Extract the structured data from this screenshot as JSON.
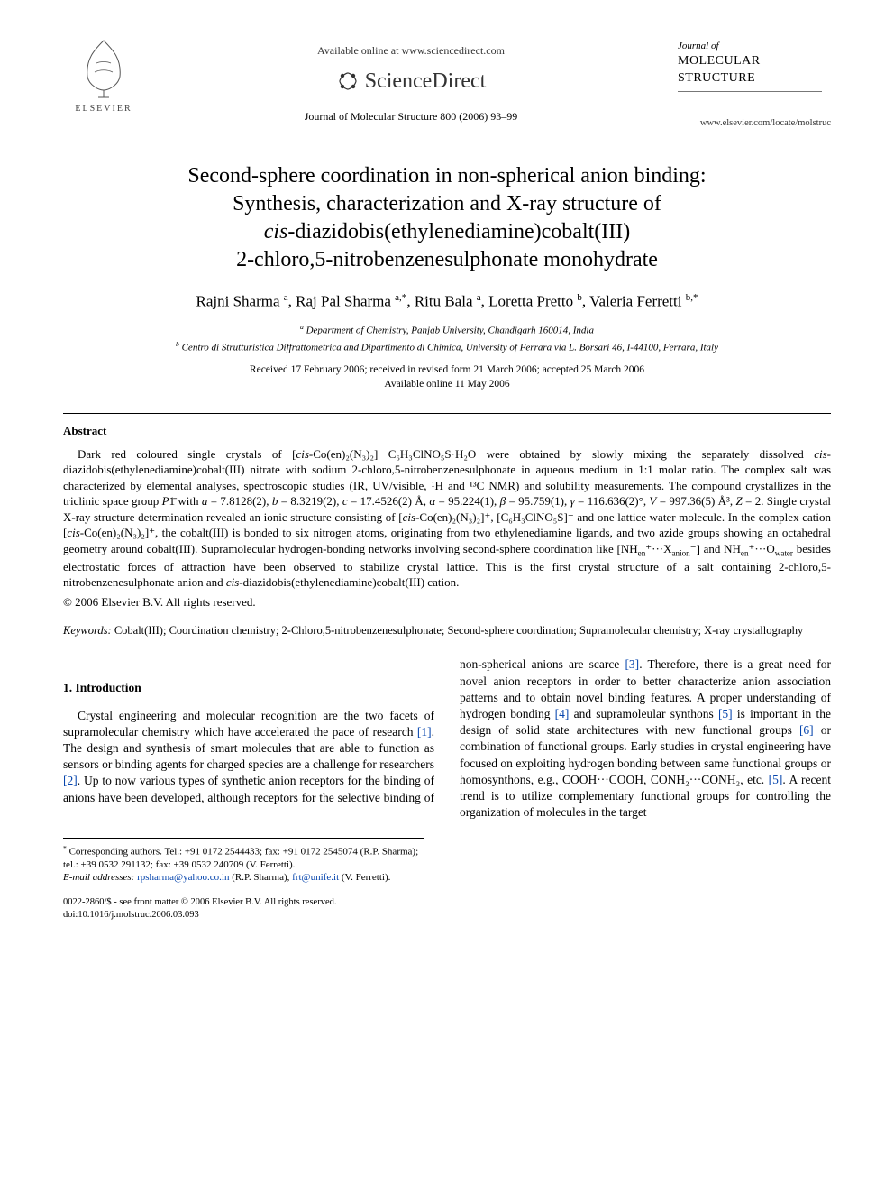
{
  "header": {
    "publisher_label": "ELSEVIER",
    "avail_text": "Available online at www.sciencedirect.com",
    "sd_brand": "ScienceDirect",
    "journal_ref": "Journal of Molecular Structure 800 (2006) 93–99",
    "right_journal_prefix": "Journal of",
    "right_journal_name1": "MOLECULAR",
    "right_journal_name2": "STRUCTURE",
    "locate_url": "www.elsevier.com/locate/molstruc"
  },
  "title": {
    "line1": "Second-sphere coordination in non-spherical anion binding:",
    "line2": "Synthesis, characterization and X-ray structure of",
    "line3_italic": "cis",
    "line3_rest": "-diazidobis(ethylenediamine)cobalt(III)",
    "line4": "2-chloro,5-nitrobenzenesulphonate monohydrate"
  },
  "authors_html": "Rajni Sharma <sup>a</sup>, Raj Pal Sharma <sup>a,*</sup>, Ritu Bala <sup>a</sup>, Loretta Pretto <sup>b</sup>, Valeria Ferretti <sup>b,*</sup>",
  "affiliations": {
    "a": "Department of Chemistry, Panjab University, Chandigarh 160014, India",
    "b": "Centro di Strutturistica Diffrattometrica and Dipartimento di Chimica, University of Ferrara via L. Borsari 46, I-44100, Ferrara, Italy"
  },
  "dates": {
    "received": "Received 17 February 2006; received in revised form 21 March 2006; accepted 25 March 2006",
    "online": "Available online 11 May 2006"
  },
  "abstract": {
    "heading": "Abstract",
    "body": "Dark red coloured single crystals of [cis-Co(en)₂(N₃)₂] C₆H₃ClNO₅S·H₂O were obtained by slowly mixing the separately dissolved cis-diazidobis(ethylenediamine)cobalt(III) nitrate with sodium 2-chloro,5-nitrobenzenesulphonate in aqueous medium in 1:1 molar ratio. The complex salt was characterized by elemental analyses, spectroscopic studies (IR, UV/visible, ¹H and ¹³C NMR) and solubility measurements. The compound crystallizes in the triclinic space group P1̄ with a = 7.8128(2), b = 8.3219(2), c = 17.4526(2) Å, α = 95.224(1), β = 95.759(1), γ = 116.636(2)°, V = 997.36(5) Å³, Z = 2. Single crystal X-ray structure determination revealed an ionic structure consisting of [cis-Co(en)₂(N₃)₂]⁺, [C₆H₃ClNO₅S]⁻ and one lattice water molecule. In the complex cation [cis-Co(en)₂(N₃)₂]⁺, the cobalt(III) is bonded to six nitrogen atoms, originating from two ethylenediamine ligands, and two azide groups showing an octahedral geometry around cobalt(III). Supramolecular hydrogen-bonding networks involving second-sphere coordination like [NHen⁺···Xanion⁻] and NHen⁺···Owater besides electrostatic forces of attraction have been observed to stabilize crystal lattice. This is the first crystal structure of a salt containing 2-chloro,5-nitrobenzenesulphonate anion and cis-diazidobis(ethylenediamine)cobalt(III) cation.",
    "copyright": "© 2006 Elsevier B.V. All rights reserved."
  },
  "keywords": {
    "label": "Keywords:",
    "text": "Cobalt(III); Coordination chemistry; 2-Chloro,5-nitrobenzenesulphonate; Second-sphere coordination; Supramolecular chemistry; X-ray crystallography"
  },
  "section1": {
    "heading": "1. Introduction",
    "para": "Crystal engineering and molecular recognition are the two facets of supramolecular chemistry which have accelerated the pace of research [1]. The design and synthesis of smart molecules that are able to function as sensors or binding agents for charged species are a challenge for researchers [2]. Up to now various types of synthetic anion receptors for the binding of anions have been developed, although receptors for the selective binding of non-spherical anions are scarce [3]. Therefore, there is a great need for novel anion receptors in order to better characterize anion association patterns and to obtain novel binding features. A proper understanding of hydrogen bonding [4] and supramoleular synthons [5] is important in the design of solid state architectures with new functional groups [6] or combination of functional groups. Early studies in crystal engineering have focused on exploiting hydrogen bonding between same functional groups or homosynthons, e.g., COOH···COOH, CONH₂···CONH₂, etc. [5]. A recent trend is to utilize complementary functional groups for controlling the organization of molecules in the target"
  },
  "footnotes": {
    "corr": "Corresponding authors. Tel.: +91 0172 2544433; fax: +91 0172 2545074 (R.P. Sharma); tel.: +39 0532 291132; fax: +39 0532 240709 (V. Ferretti).",
    "email_label": "E-mail addresses:",
    "email1": "rpsharma@yahoo.co.in",
    "email1_who": "(R.P. Sharma),",
    "email2": "frt@unife.it",
    "email2_who": "(V. Ferretti)."
  },
  "footer": {
    "issn": "0022-2860/$ - see front matter © 2006 Elsevier B.V. All rights reserved.",
    "doi": "doi:10.1016/j.molstruc.2006.03.093"
  },
  "colors": {
    "link": "#0645ad",
    "text": "#000000",
    "bg": "#ffffff"
  }
}
